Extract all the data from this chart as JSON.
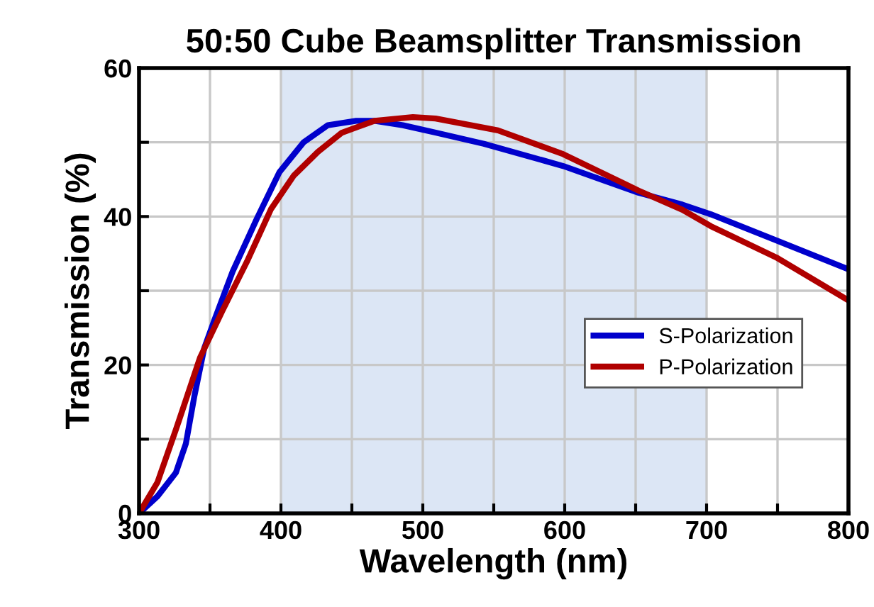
{
  "chart_data": {
    "type": "line",
    "title": "50:50 Cube Beamsplitter Transmission",
    "xlabel": "Wavelength (nm)",
    "ylabel": "Transmission (%)",
    "xlim": [
      300,
      800
    ],
    "xticks": [
      300,
      {
        "value": 350,
        "label": null
      },
      400,
      {
        "value": 450,
        "label": null
      },
      500,
      {
        "value": 550,
        "label": null
      },
      600,
      {
        "value": 650,
        "label": null
      },
      700,
      {
        "value": 750,
        "label": null
      },
      800
    ],
    "ylim": [
      0,
      60
    ],
    "yticks": [
      0,
      {
        "value": 10,
        "label": null
      },
      20,
      {
        "value": 30,
        "label": null
      },
      40,
      {
        "value": 50,
        "label": null
      },
      60
    ],
    "grid": true,
    "legend": "right",
    "bands": [
      {
        "axis": "x",
        "from": 400,
        "to": 700,
        "color": "#dce6f5"
      }
    ],
    "series": [
      {
        "name": "S-Polarization",
        "color": "#0000cc",
        "x": [
          300,
          313,
          326,
          333,
          339,
          346,
          353,
          366,
          383,
          399,
          416,
          433,
          453,
          466,
          486,
          509,
          543,
          599,
          652,
          683,
          703,
          749,
          800
        ],
        "values": [
          0,
          2.3,
          5.5,
          9.4,
          15.8,
          22.3,
          26,
          32.6,
          39.7,
          46,
          50,
          52.3,
          52.9,
          52.9,
          52.3,
          51.3,
          49.8,
          46.8,
          43.2,
          41.6,
          40.3,
          36.8,
          32.9
        ]
      },
      {
        "name": "P-Polarization",
        "color": "#b00000",
        "x": [
          300,
          313,
          326,
          343,
          359,
          376,
          393,
          409,
          426,
          443,
          466,
          493,
          509,
          553,
          599,
          652,
          683,
          703,
          749,
          800
        ],
        "values": [
          0,
          4.2,
          11.3,
          21,
          27.4,
          33.9,
          41,
          45.5,
          48.7,
          51.3,
          52.9,
          53.4,
          53.2,
          51.6,
          48.4,
          43.5,
          40.9,
          38.7,
          34.5,
          28.7
        ]
      }
    ]
  }
}
